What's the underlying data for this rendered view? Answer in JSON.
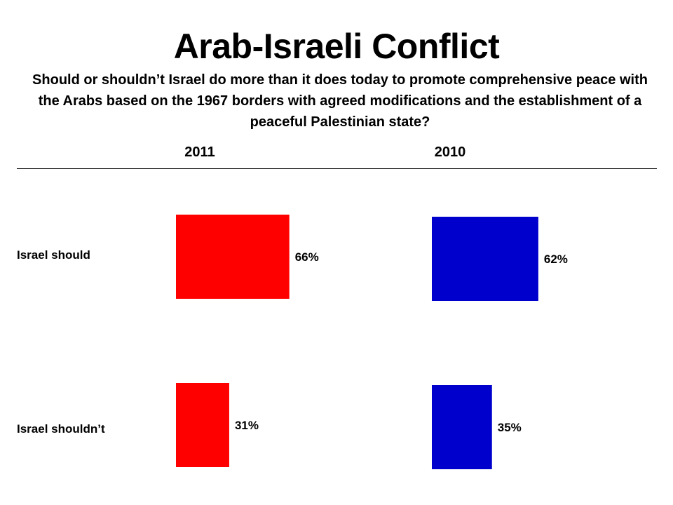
{
  "title": "Arab-Israeli Conflict",
  "subtitle": "Should or shouldn’t Israel do more than it does today to promote comprehensive peace with the Arabs based on the 1967 borders with agreed modifications and the establishment of a peaceful Palestinian state?",
  "chart_data": {
    "type": "bar",
    "orientation": "horizontal",
    "title": "Arab-Israeli Conflict",
    "subtitle": "Should or shouldn’t Israel do more than it does today to promote comprehensive peace with the Arabs based on the 1967 borders with agreed modifications and the establishment of a peaceful Palestinian state?",
    "categories": [
      "Israel should",
      "Israel shouldn’t"
    ],
    "series": [
      {
        "name": "2011",
        "values": [
          66,
          31
        ],
        "labels": [
          "66%",
          "31%"
        ],
        "color": "#ff0000"
      },
      {
        "name": "2010",
        "values": [
          62,
          35
        ],
        "labels": [
          "62%",
          "35%"
        ],
        "color": "#0000cc"
      }
    ],
    "unit": "%",
    "grid": false,
    "legend": "none"
  }
}
